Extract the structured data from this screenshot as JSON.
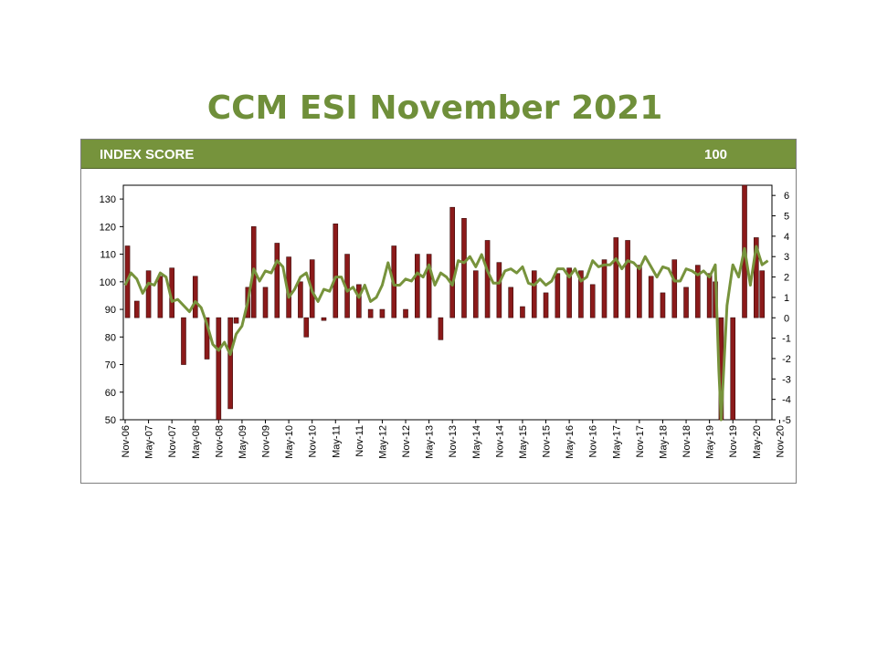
{
  "header": {
    "label": "INDEX SCORE",
    "value": "100"
  },
  "colors": {
    "bar": "#8b1a1a",
    "line": "#77933c",
    "title": "#6f8f3a",
    "header": "#76933c"
  },
  "chart_data": {
    "type": "bar+line",
    "title": "CCM ESI November 2021",
    "left_axis": {
      "ylim": [
        50,
        135
      ],
      "ticks": [
        50,
        60,
        70,
        80,
        90,
        100,
        110,
        120,
        130
      ],
      "baseline": 87
    },
    "right_axis": {
      "ylim": [
        -5,
        6.5
      ],
      "ticks": [
        -5,
        -4,
        -3,
        -2,
        -1,
        0,
        1,
        2,
        3,
        4,
        5,
        6
      ]
    },
    "x_tick_labels": [
      "Nov-06",
      "May-07",
      "Nov-07",
      "May-08",
      "Nov-08",
      "May-09",
      "Nov-09",
      "May-10",
      "Nov-10",
      "May-11",
      "Nov-11",
      "May-12",
      "Nov-12",
      "May-13",
      "Nov-13",
      "May-14",
      "Nov-14",
      "May-15",
      "Nov-15",
      "May-16",
      "Nov-16",
      "May-17",
      "Nov-17",
      "May-18",
      "Nov-18",
      "May-19",
      "Nov-19",
      "May-20",
      "Nov-20"
    ],
    "bars": [
      {
        "x": 0.2,
        "v": 113
      },
      {
        "x": 1.0,
        "v": 93
      },
      {
        "x": 2.0,
        "v": 104
      },
      {
        "x": 3.0,
        "v": 102
      },
      {
        "x": 4.0,
        "v": 105
      },
      {
        "x": 5.0,
        "v": 70
      },
      {
        "x": 6.0,
        "v": 102
      },
      {
        "x": 7.0,
        "v": 72
      },
      {
        "x": 8.0,
        "v": 50
      },
      {
        "x": 9.0,
        "v": 54
      },
      {
        "x": 9.5,
        "v": 85
      },
      {
        "x": 10.5,
        "v": 98
      },
      {
        "x": 11.0,
        "v": 120
      },
      {
        "x": 12.0,
        "v": 98
      },
      {
        "x": 13.0,
        "v": 114
      },
      {
        "x": 14.0,
        "v": 109
      },
      {
        "x": 15.0,
        "v": 100
      },
      {
        "x": 15.5,
        "v": 80
      },
      {
        "x": 16.0,
        "v": 108
      },
      {
        "x": 17.0,
        "v": 86
      },
      {
        "x": 18.0,
        "v": 121
      },
      {
        "x": 19.0,
        "v": 110
      },
      {
        "x": 20.0,
        "v": 99
      },
      {
        "x": 21.0,
        "v": 90
      },
      {
        "x": 22.0,
        "v": 90
      },
      {
        "x": 23.0,
        "v": 113
      },
      {
        "x": 24.0,
        "v": 90
      },
      {
        "x": 25.0,
        "v": 110
      },
      {
        "x": 26.0,
        "v": 110
      },
      {
        "x": 27.0,
        "v": 79
      },
      {
        "x": 28.0,
        "v": 127
      },
      {
        "x": 29.0,
        "v": 123
      },
      {
        "x": 30.0,
        "v": 104
      },
      {
        "x": 31.0,
        "v": 115
      },
      {
        "x": 32.0,
        "v": 107
      },
      {
        "x": 33.0,
        "v": 98
      },
      {
        "x": 34.0,
        "v": 91
      },
      {
        "x": 35.0,
        "v": 104
      },
      {
        "x": 36.0,
        "v": 96
      },
      {
        "x": 37.0,
        "v": 103
      },
      {
        "x": 38.0,
        "v": 105
      },
      {
        "x": 39.0,
        "v": 104
      },
      {
        "x": 40.0,
        "v": 99
      },
      {
        "x": 41.0,
        "v": 108
      },
      {
        "x": 42.0,
        "v": 116
      },
      {
        "x": 43.0,
        "v": 115
      },
      {
        "x": 44.0,
        "v": 106
      },
      {
        "x": 45.0,
        "v": 102
      },
      {
        "x": 46.0,
        "v": 96
      },
      {
        "x": 47.0,
        "v": 108
      },
      {
        "x": 48.0,
        "v": 98
      },
      {
        "x": 49.0,
        "v": 106
      },
      {
        "x": 50.0,
        "v": 103
      },
      {
        "x": 50.5,
        "v": 100
      },
      {
        "x": 51.0,
        "v": 50
      },
      {
        "x": 52.0,
        "v": 50
      },
      {
        "x": 53.0,
        "v": 135
      },
      {
        "x": 54.0,
        "v": 116
      },
      {
        "x": 54.5,
        "v": 104
      }
    ],
    "line": [
      {
        "x": 0,
        "v": 1.6
      },
      {
        "x": 0.5,
        "v": 2.2
      },
      {
        "x": 1,
        "v": 1.9
      },
      {
        "x": 1.5,
        "v": 1.2
      },
      {
        "x": 2,
        "v": 1.7
      },
      {
        "x": 2.5,
        "v": 1.6
      },
      {
        "x": 3,
        "v": 2.2
      },
      {
        "x": 3.5,
        "v": 2.0
      },
      {
        "x": 4,
        "v": 0.8
      },
      {
        "x": 4.5,
        "v": 0.9
      },
      {
        "x": 5,
        "v": 0.6
      },
      {
        "x": 5.5,
        "v": 0.3
      },
      {
        "x": 6,
        "v": 0.8
      },
      {
        "x": 6.5,
        "v": 0.5
      },
      {
        "x": 7,
        "v": -0.3
      },
      {
        "x": 7.5,
        "v": -1.3
      },
      {
        "x": 8,
        "v": -1.6
      },
      {
        "x": 8.5,
        "v": -1.2
      },
      {
        "x": 9,
        "v": -1.8
      },
      {
        "x": 9.5,
        "v": -0.8
      },
      {
        "x": 10,
        "v": -0.4
      },
      {
        "x": 10.5,
        "v": 0.8
      },
      {
        "x": 11,
        "v": 2.4
      },
      {
        "x": 11.5,
        "v": 1.8
      },
      {
        "x": 12,
        "v": 2.3
      },
      {
        "x": 12.5,
        "v": 2.2
      },
      {
        "x": 13,
        "v": 2.8
      },
      {
        "x": 13.5,
        "v": 2.5
      },
      {
        "x": 14,
        "v": 1.0
      },
      {
        "x": 14.5,
        "v": 1.4
      },
      {
        "x": 15,
        "v": 2.0
      },
      {
        "x": 15.5,
        "v": 2.2
      },
      {
        "x": 16,
        "v": 1.3
      },
      {
        "x": 16.5,
        "v": 0.8
      },
      {
        "x": 17,
        "v": 1.4
      },
      {
        "x": 17.5,
        "v": 1.3
      },
      {
        "x": 18,
        "v": 2.0
      },
      {
        "x": 18.5,
        "v": 2.0
      },
      {
        "x": 19,
        "v": 1.3
      },
      {
        "x": 19.5,
        "v": 1.5
      },
      {
        "x": 20,
        "v": 1.0
      },
      {
        "x": 20.5,
        "v": 1.6
      },
      {
        "x": 21,
        "v": 0.8
      },
      {
        "x": 21.5,
        "v": 1.0
      },
      {
        "x": 22,
        "v": 1.6
      },
      {
        "x": 22.5,
        "v": 2.7
      },
      {
        "x": 23,
        "v": 1.6
      },
      {
        "x": 23.5,
        "v": 1.6
      },
      {
        "x": 24,
        "v": 1.9
      },
      {
        "x": 24.5,
        "v": 1.8
      },
      {
        "x": 25,
        "v": 2.2
      },
      {
        "x": 25.5,
        "v": 2.0
      },
      {
        "x": 26,
        "v": 2.6
      },
      {
        "x": 26.5,
        "v": 1.6
      },
      {
        "x": 27,
        "v": 2.2
      },
      {
        "x": 27.5,
        "v": 2.0
      },
      {
        "x": 28,
        "v": 1.6
      },
      {
        "x": 28.5,
        "v": 2.8
      },
      {
        "x": 29,
        "v": 2.7
      },
      {
        "x": 29.5,
        "v": 3.0
      },
      {
        "x": 30,
        "v": 2.5
      },
      {
        "x": 30.5,
        "v": 3.1
      },
      {
        "x": 31,
        "v": 2.3
      },
      {
        "x": 31.5,
        "v": 1.7
      },
      {
        "x": 32,
        "v": 1.7
      },
      {
        "x": 32.5,
        "v": 2.3
      },
      {
        "x": 33,
        "v": 2.4
      },
      {
        "x": 33.5,
        "v": 2.2
      },
      {
        "x": 34,
        "v": 2.5
      },
      {
        "x": 34.5,
        "v": 1.7
      },
      {
        "x": 35,
        "v": 1.6
      },
      {
        "x": 35.5,
        "v": 1.9
      },
      {
        "x": 36,
        "v": 1.6
      },
      {
        "x": 36.5,
        "v": 1.8
      },
      {
        "x": 37,
        "v": 2.4
      },
      {
        "x": 37.5,
        "v": 2.4
      },
      {
        "x": 38,
        "v": 2.0
      },
      {
        "x": 38.5,
        "v": 2.4
      },
      {
        "x": 39,
        "v": 1.8
      },
      {
        "x": 39.5,
        "v": 2.0
      },
      {
        "x": 40,
        "v": 2.8
      },
      {
        "x": 40.5,
        "v": 2.5
      },
      {
        "x": 41,
        "v": 2.6
      },
      {
        "x": 41.5,
        "v": 2.6
      },
      {
        "x": 42,
        "v": 2.9
      },
      {
        "x": 42.5,
        "v": 2.4
      },
      {
        "x": 43,
        "v": 2.8
      },
      {
        "x": 43.5,
        "v": 2.7
      },
      {
        "x": 44,
        "v": 2.4
      },
      {
        "x": 44.5,
        "v": 3.0
      },
      {
        "x": 45,
        "v": 2.5
      },
      {
        "x": 45.5,
        "v": 2.0
      },
      {
        "x": 46,
        "v": 2.5
      },
      {
        "x": 46.5,
        "v": 2.4
      },
      {
        "x": 47,
        "v": 1.8
      },
      {
        "x": 47.5,
        "v": 1.8
      },
      {
        "x": 48,
        "v": 2.4
      },
      {
        "x": 48.5,
        "v": 2.3
      },
      {
        "x": 49,
        "v": 2.1
      },
      {
        "x": 49.5,
        "v": 2.3
      },
      {
        "x": 50,
        "v": 2.0
      },
      {
        "x": 50.5,
        "v": 2.6
      },
      {
        "x": 50.8,
        "v": -2.6
      },
      {
        "x": 51,
        "v": -5.0
      },
      {
        "x": 51.5,
        "v": 0.6
      },
      {
        "x": 52,
        "v": 2.6
      },
      {
        "x": 52.5,
        "v": 2.0
      },
      {
        "x": 53,
        "v": 3.4
      },
      {
        "x": 53.5,
        "v": 1.6
      },
      {
        "x": 54,
        "v": 3.5
      },
      {
        "x": 54.5,
        "v": 2.6
      },
      {
        "x": 55,
        "v": 2.8
      }
    ]
  }
}
